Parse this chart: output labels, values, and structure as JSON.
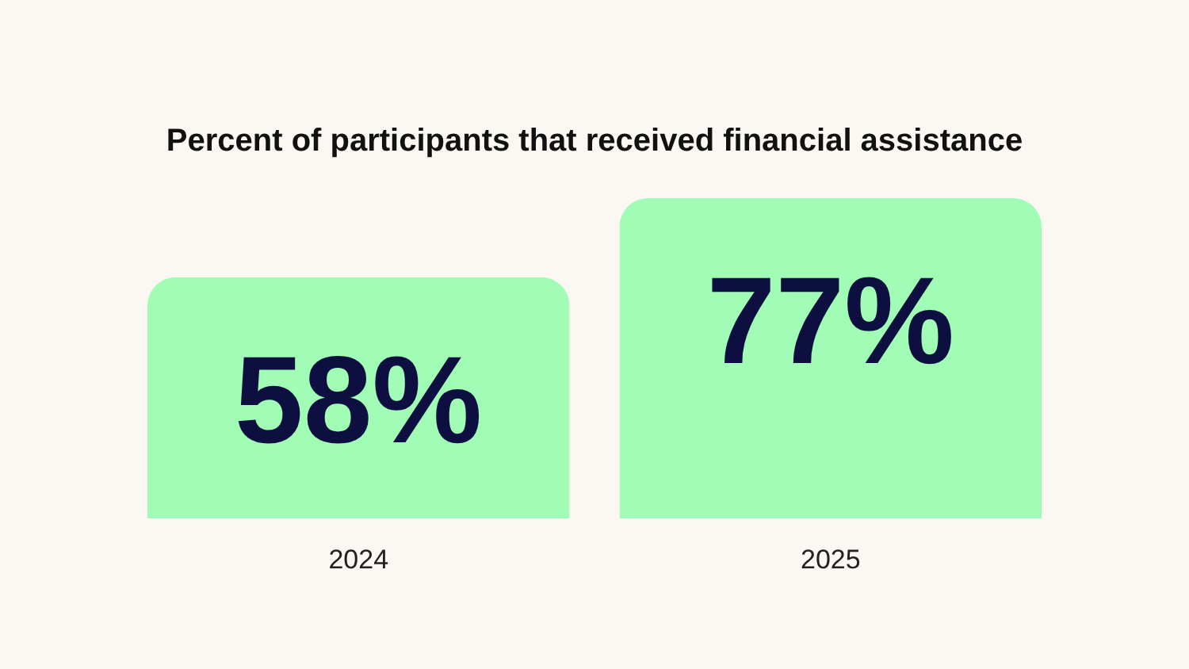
{
  "chart_data": {
    "type": "bar",
    "title": "Percent of participants that received financial assistance",
    "categories": [
      "2024",
      "2025"
    ],
    "values": [
      58,
      77
    ],
    "value_labels": [
      "58%",
      "77%"
    ],
    "color": "#a1fcb5"
  }
}
